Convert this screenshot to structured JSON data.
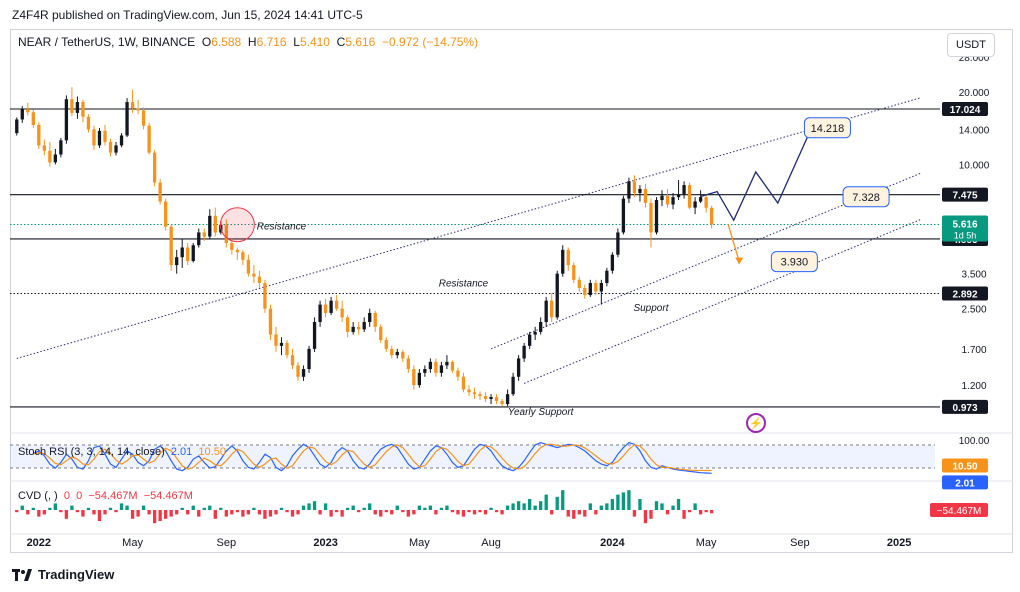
{
  "publisher": "Z4F4R published on TradingView.com, Jun 15, 2024 14:41 UTC-5",
  "symbol": {
    "name": "NEAR / TetherUS, 1W, BINANCE",
    "o_label": "O",
    "o": "6.588",
    "h_label": "H",
    "h": "6.716",
    "l_label": "L",
    "l": "5.410",
    "c_label": "C",
    "c": "5.616",
    "change": "−0.972 (−14.75%)"
  },
  "currency_button": "USDT",
  "stoch_legend": {
    "name": "Stoch RSI (3, 3, 14, 14, close)",
    "k": "2.01",
    "d": "10.50"
  },
  "cvd_legend": {
    "name": "CVD (, )",
    "a": "0",
    "b": "0",
    "c": "−54.467M",
    "d": "−54.467M"
  },
  "footer": "TradingView",
  "colors": {
    "up": "#131722",
    "down": "#f7931a",
    "accent_blue": "#2962ff",
    "cvd_up": "#089981",
    "cvd_down": "#f23645"
  },
  "chart_data": {
    "type": "candlestick",
    "price_scale": "log",
    "ylim": [
      0.85,
      34
    ],
    "y_ticks": [
      28.0,
      20.0,
      14.0,
      10.0,
      3.5,
      2.5,
      1.7,
      1.2
    ],
    "x_ticks": [
      {
        "label": "2022",
        "week": 4
      },
      {
        "label": "May",
        "week": 21
      },
      {
        "label": "Sep",
        "week": 38
      },
      {
        "label": "2023",
        "week": 56
      },
      {
        "label": "May",
        "week": 73
      },
      {
        "label": "Aug",
        "week": 86
      },
      {
        "label": "2024",
        "week": 108
      },
      {
        "label": "May",
        "week": 125
      },
      {
        "label": "Sep",
        "week": 142
      },
      {
        "label": "2025",
        "week": 160
      }
    ],
    "candles": [
      [
        13.5,
        15.7,
        13.2,
        15.4
      ],
      [
        15.4,
        17.5,
        14.9,
        17.0
      ],
      [
        17.0,
        18.1,
        16.0,
        16.5
      ],
      [
        16.5,
        16.9,
        14.2,
        14.6
      ],
      [
        14.6,
        15.0,
        11.6,
        12.0
      ],
      [
        12.0,
        12.7,
        10.9,
        11.4
      ],
      [
        11.4,
        12.4,
        9.8,
        10.2
      ],
      [
        10.2,
        11.6,
        10.0,
        11.0
      ],
      [
        11.0,
        12.9,
        10.7,
        12.6
      ],
      [
        12.6,
        19.4,
        12.2,
        18.7
      ],
      [
        18.7,
        21.0,
        15.9,
        16.4
      ],
      [
        16.4,
        19.2,
        15.5,
        18.2
      ],
      [
        18.2,
        18.6,
        15.0,
        15.8
      ],
      [
        15.8,
        16.2,
        13.6,
        14.0
      ],
      [
        14.0,
        14.5,
        11.5,
        12.0
      ],
      [
        12.0,
        14.2,
        11.7,
        13.8
      ],
      [
        13.8,
        14.6,
        12.0,
        12.4
      ],
      [
        12.4,
        12.8,
        10.8,
        11.2
      ],
      [
        11.2,
        12.4,
        10.9,
        12.0
      ],
      [
        12.0,
        13.5,
        11.8,
        13.2
      ],
      [
        13.2,
        18.9,
        13.0,
        18.2
      ],
      [
        18.2,
        20.5,
        16.4,
        17.1
      ],
      [
        17.1,
        18.6,
        16.2,
        16.8
      ],
      [
        16.8,
        17.3,
        14.0,
        14.5
      ],
      [
        14.5,
        14.9,
        11.0,
        11.2
      ],
      [
        11.2,
        11.5,
        8.1,
        8.4
      ],
      [
        8.4,
        8.7,
        6.8,
        7.0
      ],
      [
        7.0,
        7.2,
        5.3,
        5.5
      ],
      [
        5.5,
        5.6,
        3.6,
        3.8
      ],
      [
        3.8,
        4.4,
        3.5,
        4.1
      ],
      [
        4.1,
        4.9,
        3.7,
        4.5
      ],
      [
        4.5,
        4.7,
        3.8,
        3.95
      ],
      [
        3.95,
        4.7,
        3.9,
        4.6
      ],
      [
        4.6,
        5.4,
        4.5,
        5.2
      ],
      [
        5.2,
        5.4,
        4.8,
        5.0
      ],
      [
        5.0,
        6.5,
        4.9,
        6.1
      ],
      [
        6.1,
        6.6,
        5.0,
        5.2
      ],
      [
        5.2,
        5.8,
        5.1,
        5.6
      ],
      [
        5.6,
        5.9,
        4.5,
        4.7
      ],
      [
        4.7,
        4.9,
        4.2,
        4.4
      ],
      [
        4.4,
        4.5,
        4.0,
        4.3
      ],
      [
        4.3,
        4.4,
        3.8,
        4.0
      ],
      [
        4.0,
        4.2,
        3.4,
        3.5
      ],
      [
        3.5,
        3.8,
        3.2,
        3.4
      ],
      [
        3.4,
        3.6,
        3.05,
        3.2
      ],
      [
        3.2,
        3.3,
        2.4,
        2.5
      ],
      [
        2.5,
        2.6,
        1.85,
        1.95
      ],
      [
        1.95,
        2.1,
        1.65,
        1.75
      ],
      [
        1.75,
        1.9,
        1.6,
        1.8
      ],
      [
        1.8,
        1.85,
        1.55,
        1.6
      ],
      [
        1.6,
        1.7,
        1.4,
        1.45
      ],
      [
        1.45,
        1.5,
        1.25,
        1.3
      ],
      [
        1.3,
        1.45,
        1.25,
        1.4
      ],
      [
        1.4,
        1.75,
        1.35,
        1.7
      ],
      [
        1.7,
        2.3,
        1.65,
        2.2
      ],
      [
        2.2,
        2.7,
        2.1,
        2.6
      ],
      [
        2.6,
        2.75,
        2.3,
        2.4
      ],
      [
        2.4,
        2.8,
        2.35,
        2.7
      ],
      [
        2.7,
        2.85,
        2.45,
        2.5
      ],
      [
        2.5,
        2.7,
        2.2,
        2.3
      ],
      [
        2.3,
        2.35,
        1.9,
        2.0
      ],
      [
        2.0,
        2.2,
        1.95,
        2.1
      ],
      [
        2.1,
        2.2,
        1.95,
        2.05
      ],
      [
        2.05,
        2.3,
        2.0,
        2.2
      ],
      [
        2.2,
        2.5,
        2.1,
        2.4
      ],
      [
        2.4,
        2.45,
        2.0,
        2.1
      ],
      [
        2.1,
        2.15,
        1.8,
        1.85
      ],
      [
        1.85,
        1.9,
        1.65,
        1.7
      ],
      [
        1.7,
        1.75,
        1.55,
        1.6
      ],
      [
        1.6,
        1.7,
        1.55,
        1.65
      ],
      [
        1.65,
        1.68,
        1.5,
        1.55
      ],
      [
        1.55,
        1.6,
        1.35,
        1.4
      ],
      [
        1.4,
        1.45,
        1.15,
        1.2
      ],
      [
        1.2,
        1.4,
        1.17,
        1.35
      ],
      [
        1.35,
        1.45,
        1.3,
        1.4
      ],
      [
        1.4,
        1.55,
        1.35,
        1.5
      ],
      [
        1.5,
        1.55,
        1.3,
        1.35
      ],
      [
        1.35,
        1.5,
        1.3,
        1.45
      ],
      [
        1.45,
        1.6,
        1.4,
        1.5
      ],
      [
        1.5,
        1.52,
        1.35,
        1.38
      ],
      [
        1.38,
        1.42,
        1.25,
        1.3
      ],
      [
        1.3,
        1.35,
        1.12,
        1.15
      ],
      [
        1.15,
        1.2,
        1.08,
        1.12
      ],
      [
        1.12,
        1.17,
        1.05,
        1.1
      ],
      [
        1.1,
        1.13,
        1.04,
        1.08
      ],
      [
        1.08,
        1.12,
        1.02,
        1.05
      ],
      [
        1.05,
        1.1,
        1.0,
        1.07
      ],
      [
        1.07,
        1.1,
        1.0,
        1.03
      ],
      [
        1.03,
        1.05,
        0.98,
        1.0
      ],
      [
        1.0,
        1.15,
        0.98,
        1.1
      ],
      [
        1.1,
        1.35,
        1.08,
        1.3
      ],
      [
        1.3,
        1.6,
        1.25,
        1.55
      ],
      [
        1.55,
        1.8,
        1.5,
        1.75
      ],
      [
        1.75,
        2.0,
        1.7,
        1.95
      ],
      [
        1.95,
        2.1,
        1.85,
        2.0
      ],
      [
        2.0,
        2.3,
        1.95,
        2.2
      ],
      [
        2.2,
        2.8,
        2.1,
        2.7
      ],
      [
        2.7,
        2.9,
        2.2,
        2.3
      ],
      [
        2.3,
        3.6,
        2.25,
        3.5
      ],
      [
        3.5,
        4.6,
        3.4,
        4.4
      ],
      [
        4.4,
        4.5,
        3.6,
        3.8
      ],
      [
        3.8,
        3.9,
        3.2,
        3.3
      ],
      [
        3.3,
        3.4,
        2.95,
        3.05
      ],
      [
        3.05,
        3.15,
        2.75,
        2.85
      ],
      [
        2.85,
        3.3,
        2.8,
        3.2
      ],
      [
        3.2,
        3.3,
        2.85,
        2.95
      ],
      [
        2.95,
        3.3,
        2.6,
        3.2
      ],
      [
        3.2,
        3.7,
        3.1,
        3.6
      ],
      [
        3.6,
        4.3,
        3.5,
        4.2
      ],
      [
        4.2,
        5.4,
        4.1,
        5.2
      ],
      [
        5.2,
        7.4,
        5.1,
        7.2
      ],
      [
        7.2,
        8.8,
        6.9,
        8.5
      ],
      [
        8.5,
        9.0,
        7.3,
        7.6
      ],
      [
        7.6,
        8.2,
        7.0,
        7.9
      ],
      [
        7.9,
        8.3,
        6.6,
        6.9
      ],
      [
        6.9,
        7.2,
        4.5,
        5.2
      ],
      [
        5.2,
        7.3,
        5.1,
        7.1
      ],
      [
        7.1,
        7.8,
        6.7,
        7.4
      ],
      [
        7.4,
        7.9,
        6.6,
        6.8
      ],
      [
        6.8,
        7.6,
        6.5,
        7.3
      ],
      [
        7.3,
        8.6,
        7.1,
        7.5
      ],
      [
        7.5,
        8.5,
        7.2,
        8.2
      ],
      [
        8.2,
        8.4,
        6.5,
        6.6
      ],
      [
        6.6,
        7.3,
        6.2,
        7.0
      ],
      [
        7.0,
        7.8,
        6.9,
        7.3
      ],
      [
        7.3,
        7.5,
        6.3,
        6.59
      ],
      [
        6.588,
        6.716,
        5.41,
        5.616
      ]
    ],
    "hlines": [
      {
        "price": 17.024,
        "label": "17.024",
        "color": "#131722"
      },
      {
        "price": 7.475,
        "label": "7.475",
        "color": "#131722"
      },
      {
        "price": 4.885,
        "label": "4.885",
        "color": "#131722"
      },
      {
        "price": 2.892,
        "label": "2.892",
        "color": "#131722"
      },
      {
        "price": 0.973,
        "label": "0.973",
        "color": "#131722"
      }
    ],
    "current_price": {
      "price": 5.616,
      "label": "5.616",
      "countdown": "1d 5h",
      "color": "#089981"
    },
    "channels": [
      {
        "x1": 0,
        "p1": 1.55,
        "x2": 164,
        "p2": 19.0
      },
      {
        "x1": 86,
        "p1": 1.7,
        "x2": 164,
        "p2": 9.2
      },
      {
        "x1": 92,
        "p1": 1.22,
        "x2": 164,
        "p2": 5.9
      }
    ],
    "projection": {
      "path": [
        [
          124,
          7.35
        ],
        [
          127,
          7.7
        ],
        [
          130,
          5.85
        ],
        [
          134,
          9.3
        ],
        [
          138,
          6.9
        ],
        [
          144,
          14.0
        ]
      ],
      "alt_path": [
        [
          130,
          7.35
        ],
        [
          142,
          7.328
        ]
      ],
      "down_path": [
        [
          129,
          5.616
        ],
        [
          131,
          3.93
        ]
      ]
    },
    "targets": [
      {
        "price": 14.218,
        "label": "14.218",
        "week": 147
      },
      {
        "price": 7.328,
        "label": "7.328",
        "week": 154
      },
      {
        "price": 3.93,
        "label": "3.930",
        "week": 141
      }
    ],
    "annotations": [
      {
        "text": "Resistance",
        "week": 48,
        "price": 5.35
      },
      {
        "text": "Resistance",
        "week": 81,
        "price": 3.1
      },
      {
        "text": "Support",
        "week": 115,
        "price": 2.45
      },
      {
        "text": "Yearly Support",
        "week": 95,
        "price": 0.9
      }
    ],
    "circle": {
      "week": 40,
      "price": 5.6
    },
    "stoch_rsi": {
      "ticks": [
        "100.00"
      ],
      "k_label": "2.01",
      "d_label": "10.50",
      "k": [
        62,
        70,
        55,
        30,
        18,
        35,
        60,
        45,
        20,
        15,
        40,
        80,
        85,
        60,
        30,
        20,
        45,
        70,
        60,
        35,
        25,
        40,
        75,
        85,
        70,
        40,
        15,
        10,
        20,
        45,
        55,
        35,
        18,
        22,
        45,
        70,
        85,
        70,
        40,
        20,
        15,
        35,
        60,
        50,
        20,
        10,
        25,
        55,
        75,
        90,
        80,
        55,
        30,
        20,
        35,
        65,
        80,
        70,
        40,
        20,
        15,
        30,
        55,
        75,
        85,
        90,
        80,
        55,
        30,
        15,
        20,
        45,
        70,
        85,
        80,
        60,
        35,
        20,
        25,
        50,
        75,
        90,
        85,
        70,
        45,
        25,
        15,
        10,
        20,
        40,
        65,
        88,
        95,
        90,
        85,
        80,
        85,
        90,
        88,
        80,
        70,
        55,
        40,
        30,
        25,
        35,
        60,
        80,
        95,
        90,
        70,
        40,
        20,
        15,
        25,
        20,
        15,
        12,
        10,
        8,
        6,
        4,
        3,
        2.01
      ],
      "d": [
        60,
        65,
        62,
        48,
        32,
        28,
        40,
        52,
        45,
        30,
        28,
        45,
        68,
        75,
        62,
        42,
        30,
        40,
        55,
        58,
        45,
        33,
        40,
        62,
        78,
        70,
        48,
        25,
        15,
        20,
        35,
        48,
        40,
        28,
        25,
        40,
        60,
        75,
        68,
        48,
        30,
        20,
        30,
        45,
        48,
        30,
        18,
        25,
        48,
        70,
        82,
        78,
        58,
        38,
        28,
        38,
        58,
        72,
        68,
        48,
        30,
        20,
        28,
        48,
        68,
        82,
        88,
        80,
        60,
        38,
        22,
        25,
        45,
        68,
        80,
        75,
        58,
        38,
        25,
        30,
        50,
        72,
        85,
        82,
        68,
        48,
        30,
        18,
        15,
        22,
        40,
        62,
        80,
        90,
        90,
        87,
        84,
        85,
        88,
        86,
        79,
        68,
        55,
        42,
        32,
        30,
        38,
        55,
        75,
        88,
        85,
        68,
        45,
        28,
        20,
        20,
        18,
        15,
        13,
        12,
        11,
        10.8,
        10.6,
        10.5
      ]
    },
    "cvd": {
      "label": "−54.467M",
      "values": [
        -1,
        2,
        -2,
        1,
        -3,
        -2,
        1,
        3,
        -1,
        -4,
        2,
        -1,
        -3,
        1,
        -2,
        -5,
        -2,
        1,
        -1,
        3,
        2,
        -4,
        -3,
        2,
        -2,
        -6,
        -5,
        -4,
        -3,
        -2,
        1,
        -2,
        2,
        -3,
        1,
        2,
        -4,
        1,
        -3,
        -2,
        -1,
        -3,
        -2,
        1,
        -2,
        -4,
        -3,
        -2,
        1,
        -1,
        -3,
        -2,
        2,
        3,
        4,
        -2,
        3,
        -3,
        -1,
        -3,
        1,
        2,
        -1,
        1,
        3,
        -2,
        -3,
        -1,
        -2,
        2,
        -1,
        -3,
        -2,
        2,
        1,
        2,
        -2,
        1,
        2,
        -1,
        -2,
        -3,
        -1,
        -2,
        -1,
        -2,
        1,
        -1,
        -2,
        2,
        3,
        4,
        3,
        5,
        2,
        4,
        7,
        -2,
        6,
        9,
        -3,
        -4,
        -2,
        -3,
        3,
        -2,
        2,
        3,
        5,
        7,
        8,
        9,
        -3,
        5,
        -6,
        -4,
        4,
        3,
        -2,
        2,
        5,
        -4,
        -1,
        3,
        -2,
        -1,
        -1.5
      ]
    },
    "n_future_weeks": 40
  }
}
